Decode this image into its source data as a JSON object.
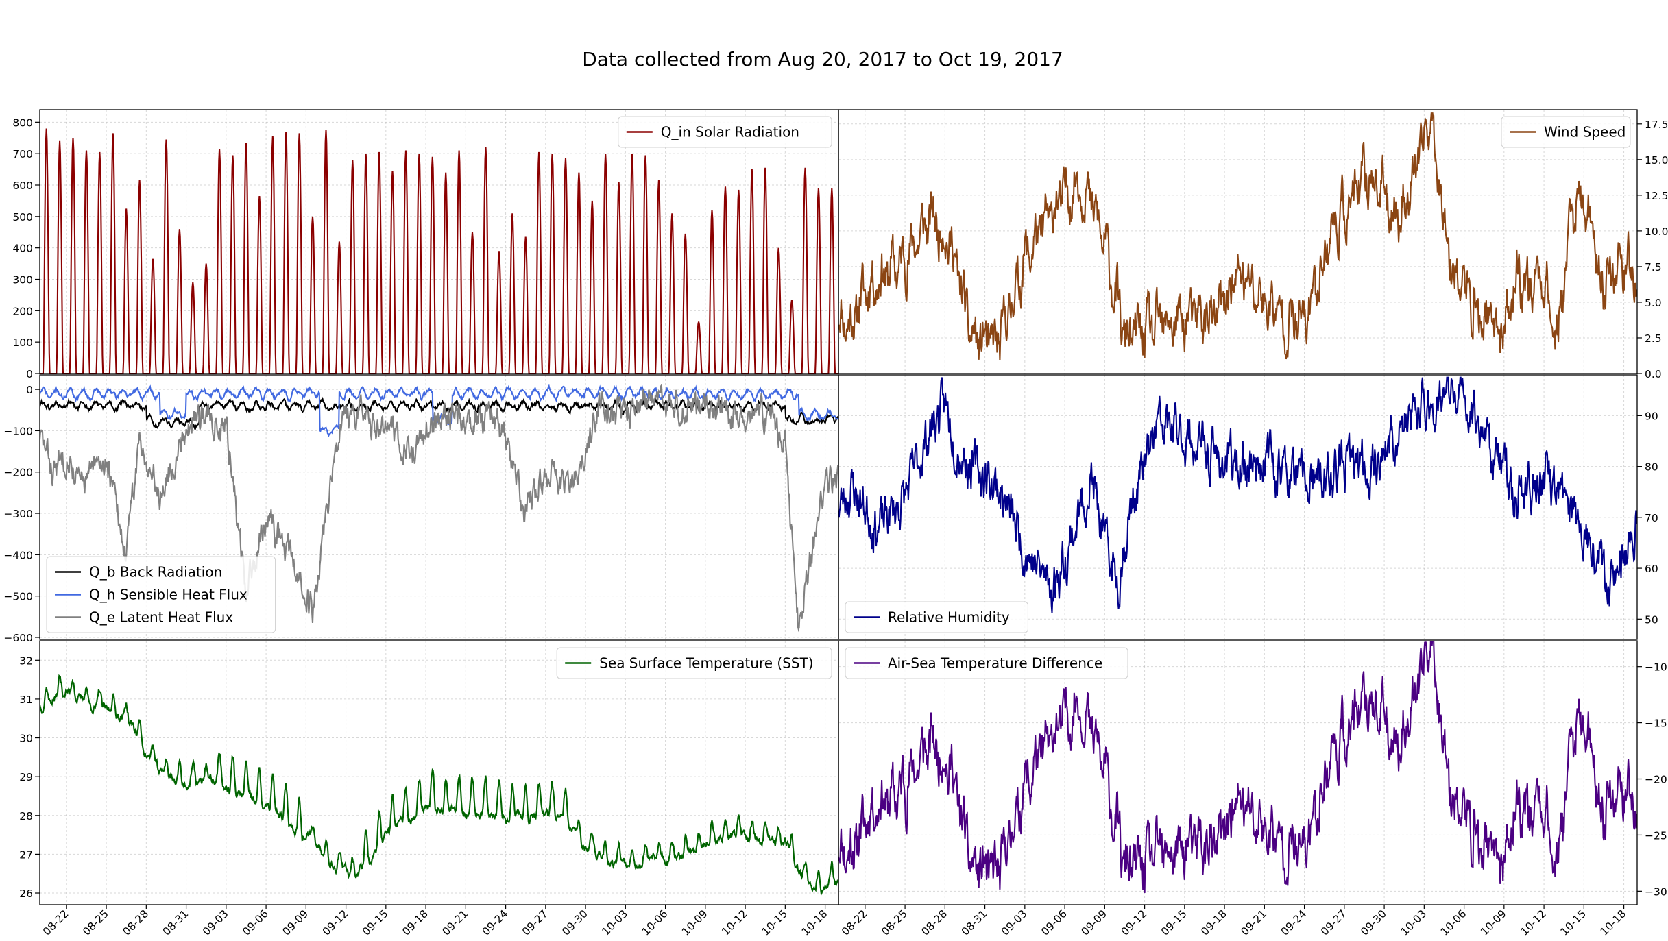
{
  "figure": {
    "title": "Data collected from Aug 20, 2017 to Oct 19, 2017"
  },
  "x_axis": {
    "start_date": "2017-08-20",
    "end_date": "2017-10-19",
    "tick_labels": [
      "08-22",
      "08-25",
      "08-28",
      "08-31",
      "09-03",
      "09-06",
      "09-09",
      "09-12",
      "09-15",
      "09-18",
      "09-21",
      "09-24",
      "09-27",
      "09-30",
      "10-03",
      "10-06",
      "10-09",
      "10-12",
      "10-15",
      "10-18"
    ]
  },
  "colors": {
    "solar": "#8b0000",
    "wind": "#8b4513",
    "back_radiation": "#000000",
    "sensible": "#4169e1",
    "latent": "#808080",
    "humidity": "#00008b",
    "sst": "#006400",
    "airsea": "#4b0082"
  },
  "chart_data": [
    {
      "id": "solar",
      "type": "line",
      "ylim": [
        0,
        840
      ],
      "yticks": [
        0,
        100,
        200,
        300,
        400,
        500,
        600,
        700,
        800
      ],
      "y_axis_side": "left",
      "legend_position": "top-right",
      "series": [
        {
          "name": "Solar Radiation",
          "legend_label": "Q_in  Solar Radiation",
          "color_key": "solar",
          "daily_peaks": [
            780,
            740,
            750,
            710,
            705,
            765,
            525,
            615,
            365,
            745,
            460,
            290,
            350,
            715,
            695,
            735,
            565,
            755,
            770,
            765,
            500,
            775,
            420,
            680,
            700,
            705,
            645,
            710,
            700,
            690,
            640,
            710,
            450,
            720,
            390,
            510,
            435,
            705,
            700,
            685,
            640,
            550,
            700,
            610,
            700,
            695,
            615,
            510,
            445,
            165,
            520,
            595,
            585,
            650,
            655,
            400,
            235,
            655,
            590
          ]
        }
      ]
    },
    {
      "id": "wind",
      "type": "line",
      "ylim": [
        0,
        18.5
      ],
      "yticks": [
        0.0,
        2.5,
        5.0,
        7.5,
        10.0,
        12.5,
        15.0,
        17.5
      ],
      "y_axis_side": "right",
      "legend_position": "top-right",
      "series": [
        {
          "name": "Wind Speed",
          "color_key": "wind"
        }
      ]
    },
    {
      "id": "heat_flux",
      "type": "line",
      "ylim": [
        -605,
        35
      ],
      "yticks": [
        0,
        -100,
        -200,
        -300,
        -400,
        -500,
        -600
      ],
      "y_axis_side": "left",
      "legend_position": "bottom-left",
      "series": [
        {
          "name": "Back Radiation",
          "legend_label": "Q_b  Back Radiation",
          "color_key": "back_radiation"
        },
        {
          "name": "Sensible Heat Flux",
          "legend_label": "Q_h  Sensible Heat Flux",
          "color_key": "sensible"
        },
        {
          "name": "Latent Heat Flux",
          "legend_label": "Q_e  Latent Heat Flux",
          "color_key": "latent"
        }
      ]
    },
    {
      "id": "humidity",
      "type": "line",
      "ylim": [
        46,
        98
      ],
      "yticks": [
        50,
        60,
        70,
        80,
        90
      ],
      "y_axis_side": "right",
      "legend_position": "bottom-left",
      "series": [
        {
          "name": "Relative Humidity",
          "color_key": "humidity"
        }
      ]
    },
    {
      "id": "sst",
      "type": "line",
      "ylim": [
        25.7,
        32.5
      ],
      "yticks": [
        26,
        27,
        28,
        29,
        30,
        31,
        32
      ],
      "y_axis_side": "left",
      "legend_position": "top-right",
      "series": [
        {
          "name": "Sea Surface Temperature (SST)",
          "color_key": "sst"
        }
      ]
    },
    {
      "id": "airsea",
      "type": "line",
      "ylim": [
        -31.2,
        -7.7
      ],
      "yticks": [
        -10,
        -15,
        -20,
        -25,
        -30
      ],
      "y_axis_side": "right",
      "legend_position": "top-left",
      "series": [
        {
          "name": "Air-Sea Temperature Difference",
          "color_key": "airsea"
        }
      ]
    }
  ]
}
